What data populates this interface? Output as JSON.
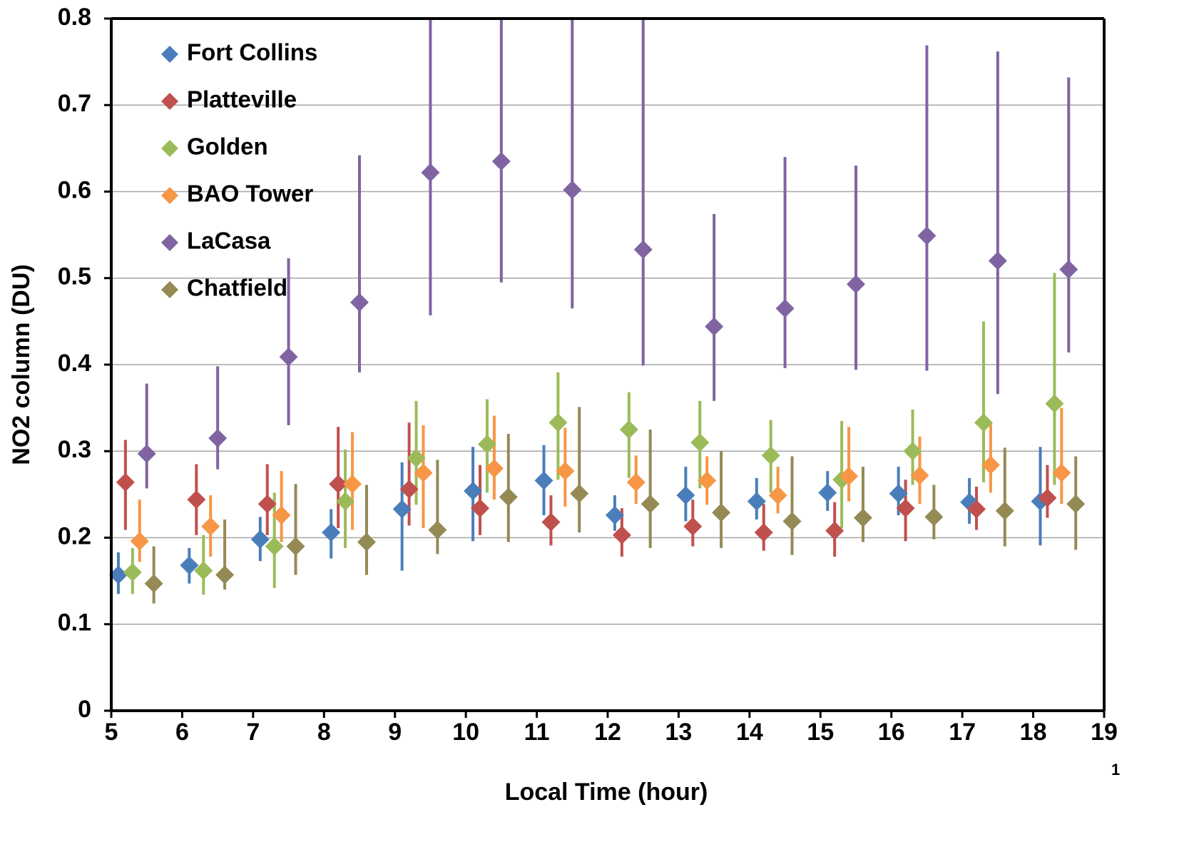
{
  "chart_data": {
    "type": "scatter",
    "x_label": "Local Time (hour)",
    "y_label": "NO2 column (DU)",
    "xlim": [
      5,
      19
    ],
    "xticks": [
      5,
      6,
      7,
      8,
      9,
      10,
      11,
      12,
      13,
      14,
      15,
      16,
      17,
      18,
      19
    ],
    "ylim": [
      0,
      0.8
    ],
    "yticks": [
      0,
      0.1,
      0.2,
      0.3,
      0.4,
      0.5,
      0.6,
      0.7,
      0.8
    ],
    "grid": true,
    "legend": "upper-left",
    "page_number": "1",
    "series": [
      {
        "name": "Fort Collins",
        "color": "#4a7ebb",
        "x": [
          5.1,
          6.1,
          7.1,
          8.1,
          9.1,
          10.1,
          11.1,
          12.1,
          13.1,
          14.1,
          15.1,
          16.1,
          17.1,
          18.1
        ],
        "values": [
          0.157,
          0.168,
          0.198,
          0.206,
          0.233,
          0.254,
          0.266,
          0.226,
          0.249,
          0.242,
          0.252,
          0.251,
          0.241,
          0.242
        ],
        "low": [
          0.135,
          0.147,
          0.173,
          0.176,
          0.162,
          0.196,
          0.226,
          0.208,
          0.219,
          0.221,
          0.231,
          0.226,
          0.216,
          0.191
        ],
        "high": [
          0.183,
          0.188,
          0.224,
          0.233,
          0.287,
          0.305,
          0.307,
          0.249,
          0.282,
          0.269,
          0.277,
          0.282,
          0.269,
          0.305
        ]
      },
      {
        "name": "Platteville",
        "color": "#c0504d",
        "x": [
          5.2,
          6.2,
          7.2,
          8.2,
          9.2,
          10.2,
          11.2,
          12.2,
          13.2,
          14.2,
          15.2,
          16.2,
          17.2,
          18.2
        ],
        "values": [
          0.264,
          0.244,
          0.239,
          0.262,
          0.256,
          0.234,
          0.218,
          0.203,
          0.213,
          0.206,
          0.208,
          0.234,
          0.233,
          0.246
        ],
        "low": [
          0.209,
          0.203,
          0.203,
          0.211,
          0.214,
          0.203,
          0.191,
          0.178,
          0.19,
          0.185,
          0.178,
          0.196,
          0.209,
          0.223
        ],
        "high": [
          0.313,
          0.285,
          0.285,
          0.328,
          0.333,
          0.284,
          0.249,
          0.234,
          0.244,
          0.239,
          0.241,
          0.267,
          0.259,
          0.284
        ]
      },
      {
        "name": "Golden",
        "color": "#9bbb59",
        "x": [
          5.3,
          6.3,
          7.3,
          8.3,
          9.3,
          10.3,
          11.3,
          12.3,
          13.3,
          14.3,
          15.3,
          16.3,
          17.3,
          18.3
        ],
        "values": [
          0.16,
          0.162,
          0.19,
          0.242,
          0.292,
          0.308,
          0.333,
          0.325,
          0.31,
          0.295,
          0.267,
          0.3,
          0.333,
          0.355
        ],
        "low": [
          0.135,
          0.134,
          0.142,
          0.188,
          0.238,
          0.252,
          0.267,
          0.269,
          0.257,
          0.252,
          0.211,
          0.261,
          0.264,
          0.261
        ],
        "high": [
          0.188,
          0.203,
          0.252,
          0.302,
          0.358,
          0.36,
          0.391,
          0.368,
          0.358,
          0.336,
          0.335,
          0.348,
          0.45,
          0.506
        ]
      },
      {
        "name": "BAO Tower",
        "color": "#f79646",
        "x": [
          5.4,
          6.4,
          7.4,
          8.4,
          9.4,
          10.4,
          11.4,
          12.4,
          13.4,
          14.4,
          15.4,
          16.4,
          17.4,
          18.4
        ],
        "values": [
          0.196,
          0.213,
          0.226,
          0.262,
          0.275,
          0.28,
          0.277,
          0.264,
          0.266,
          0.249,
          0.271,
          0.272,
          0.284,
          0.275
        ],
        "low": [
          0.172,
          0.178,
          0.195,
          0.209,
          0.211,
          0.244,
          0.236,
          0.239,
          0.238,
          0.228,
          0.242,
          0.239,
          0.252,
          0.239
        ],
        "high": [
          0.244,
          0.249,
          0.277,
          0.322,
          0.33,
          0.341,
          0.327,
          0.295,
          0.294,
          0.282,
          0.328,
          0.317,
          0.332,
          0.35
        ]
      },
      {
        "name": "LaCasa",
        "color": "#8064a2",
        "x": [
          5.5,
          6.5,
          7.5,
          8.5,
          9.5,
          10.5,
          11.5,
          12.5,
          13.5,
          14.5,
          15.5,
          16.5,
          17.5,
          18.5
        ],
        "values": [
          0.297,
          0.315,
          0.409,
          0.472,
          0.622,
          0.635,
          0.602,
          0.533,
          0.444,
          0.465,
          0.493,
          0.549,
          0.52,
          0.51
        ],
        "low": [
          0.257,
          0.279,
          0.33,
          0.391,
          0.457,
          0.495,
          0.465,
          0.399,
          0.358,
          0.396,
          0.394,
          0.393,
          0.366,
          0.414
        ],
        "high": [
          0.378,
          0.398,
          0.523,
          0.642,
          0.8,
          0.8,
          0.8,
          0.8,
          0.574,
          0.64,
          0.63,
          0.769,
          0.762,
          0.732
        ]
      },
      {
        "name": "Chatfield",
        "color": "#948a54",
        "x": [
          5.6,
          6.6,
          7.6,
          8.6,
          9.6,
          10.6,
          11.6,
          12.6,
          13.6,
          14.6,
          15.6,
          16.6,
          17.6,
          18.6
        ],
        "values": [
          0.147,
          0.157,
          0.19,
          0.195,
          0.209,
          0.247,
          0.251,
          0.239,
          0.229,
          0.219,
          0.223,
          0.224,
          0.231,
          0.239
        ],
        "low": [
          0.124,
          0.14,
          0.157,
          0.157,
          0.181,
          0.195,
          0.206,
          0.188,
          0.188,
          0.18,
          0.195,
          0.198,
          0.19,
          0.186
        ],
        "high": [
          0.19,
          0.221,
          0.262,
          0.261,
          0.29,
          0.32,
          0.351,
          0.325,
          0.3,
          0.294,
          0.282,
          0.261,
          0.304,
          0.294
        ]
      }
    ]
  }
}
